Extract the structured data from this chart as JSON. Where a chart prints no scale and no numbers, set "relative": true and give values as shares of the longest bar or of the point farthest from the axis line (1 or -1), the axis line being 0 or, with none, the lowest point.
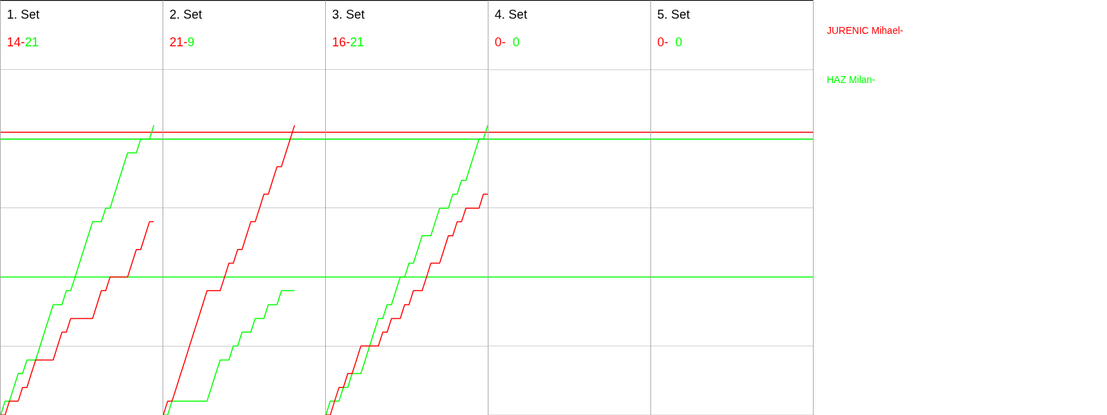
{
  "chart_data": [
    {
      "type": "line",
      "title": "1. Set",
      "subtitle": "14-21",
      "relative": true,
      "grid": "y",
      "legend": "right",
      "marker": "none",
      "line_style": "solid",
      "categories": [
        null,
        null,
        null,
        null,
        null,
        null,
        null,
        null,
        null,
        null,
        null,
        null,
        null,
        null,
        null,
        null,
        null,
        null,
        null,
        null,
        null,
        null,
        null,
        null,
        null,
        null,
        null,
        null,
        null,
        null,
        null,
        null,
        null,
        null,
        null,
        null,
        null,
        null
      ],
      "series": [
        {
          "name": "JURENIC Mihael-",
          "color": "#ff0000",
          "values": [
            0,
            0,
            0.048,
            0.048,
            0.048,
            0.095,
            0.095,
            0.143,
            0.19,
            0.19,
            0.19,
            0.19,
            0.19,
            0.238,
            0.286,
            0.286,
            0.333,
            0.333,
            0.333,
            0.333,
            0.333,
            0.333,
            0.381,
            0.429,
            0.429,
            0.476,
            0.476,
            0.476,
            0.476,
            0.476,
            0.524,
            0.571,
            0.571,
            0.619,
            0.667,
            0.667,
            null,
            null
          ]
        },
        {
          "name": "HAZ Milan-",
          "color": "#00ff00",
          "values": [
            0,
            0.048,
            0.048,
            0.095,
            0.143,
            0.143,
            0.19,
            0.19,
            0.19,
            0.238,
            0.286,
            0.333,
            0.381,
            0.381,
            0.381,
            0.429,
            0.429,
            0.476,
            0.524,
            0.571,
            0.619,
            0.667,
            0.667,
            0.667,
            0.714,
            0.714,
            0.762,
            0.81,
            0.857,
            0.905,
            0.905,
            0.905,
            0.952,
            0.952,
            0.952,
            1,
            null,
            null
          ]
        }
      ],
      "ref_lines": [
        {
          "axis": "y",
          "value": 0.976,
          "color": "#ff0000"
        },
        {
          "axis": "y",
          "value": 0.952,
          "color": "#00ff00"
        },
        {
          "axis": "y",
          "value": 0.476,
          "color": "#00ff00"
        }
      ]
    },
    {
      "type": "line",
      "title": "2. Set",
      "subtitle": "21-9",
      "relative": true,
      "grid": "y",
      "marker": "none",
      "line_style": "solid",
      "categories": [
        null,
        null,
        null,
        null,
        null,
        null,
        null,
        null,
        null,
        null,
        null,
        null,
        null,
        null,
        null,
        null,
        null,
        null,
        null,
        null,
        null,
        null,
        null,
        null,
        null,
        null,
        null,
        null,
        null,
        null,
        null,
        null,
        null,
        null,
        null,
        null,
        null,
        null
      ],
      "series": [
        {
          "color": "#ff0000",
          "values": [
            0,
            0.048,
            0.048,
            0.095,
            0.143,
            0.19,
            0.238,
            0.286,
            0.333,
            0.381,
            0.429,
            0.429,
            0.429,
            0.429,
            0.476,
            0.524,
            0.524,
            0.571,
            0.571,
            0.619,
            0.667,
            0.667,
            0.714,
            0.762,
            0.762,
            0.81,
            0.857,
            0.857,
            0.905,
            0.952,
            1,
            null,
            null,
            null,
            null,
            null,
            null,
            null
          ]
        },
        {
          "color": "#00ff00",
          "values": [
            0,
            0,
            0.048,
            0.048,
            0.048,
            0.048,
            0.048,
            0.048,
            0.048,
            0.048,
            0.048,
            0.095,
            0.143,
            0.19,
            0.19,
            0.19,
            0.238,
            0.238,
            0.286,
            0.286,
            0.286,
            0.333,
            0.333,
            0.333,
            0.381,
            0.381,
            0.381,
            0.429,
            0.429,
            0.429,
            0.429,
            null,
            null,
            null,
            null,
            null,
            null,
            null
          ]
        }
      ],
      "ref_lines": [
        {
          "axis": "y",
          "value": 0.976,
          "color": "#ff0000"
        },
        {
          "axis": "y",
          "value": 0.952,
          "color": "#00ff00"
        },
        {
          "axis": "y",
          "value": 0.476,
          "color": "#00ff00"
        }
      ]
    },
    {
      "type": "line",
      "title": "3. Set",
      "subtitle": "16-21",
      "relative": true,
      "grid": "y",
      "marker": "none",
      "line_style": "solid",
      "categories": [
        null,
        null,
        null,
        null,
        null,
        null,
        null,
        null,
        null,
        null,
        null,
        null,
        null,
        null,
        null,
        null,
        null,
        null,
        null,
        null,
        null,
        null,
        null,
        null,
        null,
        null,
        null,
        null,
        null,
        null,
        null,
        null,
        null,
        null,
        null,
        null,
        null,
        null
      ],
      "series": [
        {
          "color": "#ff0000",
          "values": [
            0,
            0,
            0.048,
            0.095,
            0.095,
            0.143,
            0.143,
            0.19,
            0.238,
            0.238,
            0.238,
            0.238,
            0.238,
            0.286,
            0.286,
            0.333,
            0.333,
            0.333,
            0.381,
            0.381,
            0.429,
            0.429,
            0.429,
            0.476,
            0.524,
            0.524,
            0.524,
            0.571,
            0.619,
            0.619,
            0.667,
            0.667,
            0.714,
            0.714,
            0.714,
            0.714,
            0.762,
            0.762
          ]
        },
        {
          "color": "#00ff00",
          "values": [
            0,
            0.048,
            0.048,
            0.048,
            0.095,
            0.095,
            0.143,
            0.143,
            0.143,
            0.19,
            0.238,
            0.286,
            0.333,
            0.333,
            0.381,
            0.381,
            0.429,
            0.476,
            0.476,
            0.524,
            0.524,
            0.571,
            0.619,
            0.619,
            0.619,
            0.667,
            0.714,
            0.714,
            0.714,
            0.762,
            0.762,
            0.81,
            0.81,
            0.857,
            0.905,
            0.952,
            0.952,
            1
          ]
        }
      ],
      "ref_lines": [
        {
          "axis": "y",
          "value": 0.976,
          "color": "#ff0000"
        },
        {
          "axis": "y",
          "value": 0.952,
          "color": "#00ff00"
        },
        {
          "axis": "y",
          "value": 0.476,
          "color": "#00ff00"
        }
      ]
    },
    {
      "type": "other",
      "title": "4. Set",
      "subtitle": "0-  0",
      "colors": [
        "#ff0000",
        "#00ff00"
      ]
    },
    {
      "type": "other",
      "title": "5. Set",
      "subtitle": "0-  0",
      "colors": [
        "#ff0000",
        "#00ff00"
      ]
    }
  ]
}
